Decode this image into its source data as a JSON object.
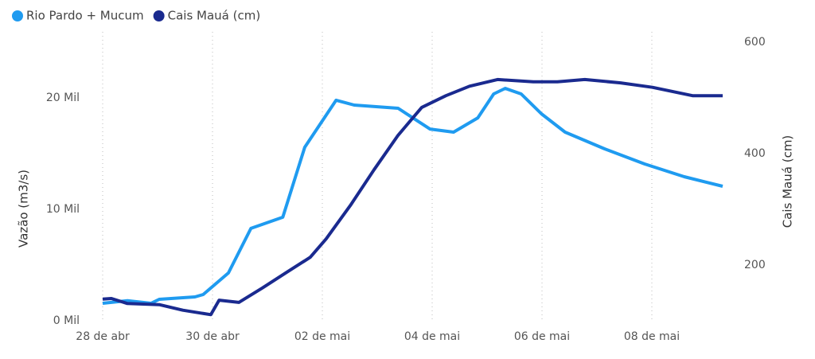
{
  "chart_data": {
    "type": "line",
    "x_label": null,
    "y_label": "Vazão (m3/s)",
    "y2_label": "Cais Mauá (cm)",
    "xlim": [
      -0.5,
      11.5
    ],
    "xticks": [
      {
        "value": 0,
        "label": "28 de abr"
      },
      {
        "value": 2,
        "label": "30 de abr"
      },
      {
        "value": 4,
        "label": "02 de mai"
      },
      {
        "value": 6,
        "label": "04 de mai"
      },
      {
        "value": 8,
        "label": "06 de mai"
      },
      {
        "value": 10,
        "label": "08 de mai"
      }
    ],
    "ylim": [
      0,
      25000
    ],
    "yticks": [
      {
        "value": 0,
        "label": "0 Mil"
      },
      {
        "value": 10000,
        "label": "10 Mil"
      },
      {
        "value": 20000,
        "label": "20 Mil"
      }
    ],
    "y2lim": [
      100,
      600
    ],
    "y2ticks": [
      200,
      400,
      600
    ],
    "grid": true,
    "legend": "top-left",
    "series": [
      {
        "name": "Rio Pardo + Mucum",
        "color": "#1f9bf0",
        "x": [
          0,
          0.45,
          0.88,
          1.03,
          1.68,
          1.83,
          2.29,
          2.7,
          3.28,
          3.68,
          4.25,
          4.58,
          5.38,
          5.96,
          6.39,
          6.83,
          7.12,
          7.33,
          7.62,
          7.99,
          8.42,
          9.14,
          9.87,
          10.59,
          11.29
        ],
        "values": [
          1570,
          1800,
          1570,
          1930,
          2140,
          2360,
          4290,
          8290,
          9290,
          15570,
          19790,
          19360,
          19070,
          17210,
          16930,
          18210,
          20360,
          20860,
          20360,
          18570,
          16930,
          15430,
          14070,
          12930,
          12070
        ]
      },
      {
        "name": "Cais Mauá (cm)",
        "color": "#1a2a8f",
        "axis": "y2",
        "x": [
          0,
          0.16,
          0.45,
          1.03,
          1.46,
          1.97,
          2.12,
          2.48,
          2.91,
          3.35,
          3.78,
          4.07,
          4.51,
          4.94,
          5.38,
          5.81,
          6.25,
          6.68,
          7.19,
          7.84,
          8.28,
          8.78,
          9.43,
          10.01,
          10.74,
          11.29
        ],
        "values": [
          139,
          140,
          131,
          129,
          119,
          111,
          137,
          133,
          159,
          187,
          214,
          247,
          307,
          371,
          433,
          483,
          504,
          521,
          533,
          529,
          529,
          533,
          527,
          519,
          504,
          504
        ]
      }
    ]
  }
}
